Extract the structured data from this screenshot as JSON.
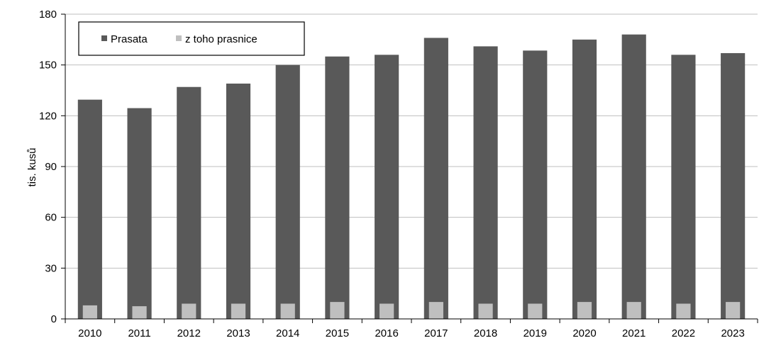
{
  "chart_data": {
    "type": "bar",
    "title": "",
    "xlabel": "",
    "ylabel": "tis. kusů",
    "ylim": [
      0,
      180
    ],
    "yticks": [
      0,
      30,
      60,
      90,
      120,
      150,
      180
    ],
    "grid": true,
    "legend_position": "top-left",
    "categories": [
      "2010",
      "2011",
      "2012",
      "2013",
      "2014",
      "2015",
      "2016",
      "2017",
      "2018",
      "2019",
      "2020",
      "2021",
      "2022",
      "2023"
    ],
    "series": [
      {
        "name": "Prasata",
        "color": "#595959",
        "values": [
          129.5,
          124.5,
          137,
          139,
          150,
          155,
          156,
          166,
          161,
          158.5,
          165,
          168,
          156,
          157
        ]
      },
      {
        "name": "z toho prasnice",
        "color": "#bfbfbf",
        "values": [
          8,
          7.5,
          9,
          9,
          9,
          10,
          9,
          10,
          9,
          9,
          10,
          10,
          9,
          10
        ]
      }
    ]
  }
}
